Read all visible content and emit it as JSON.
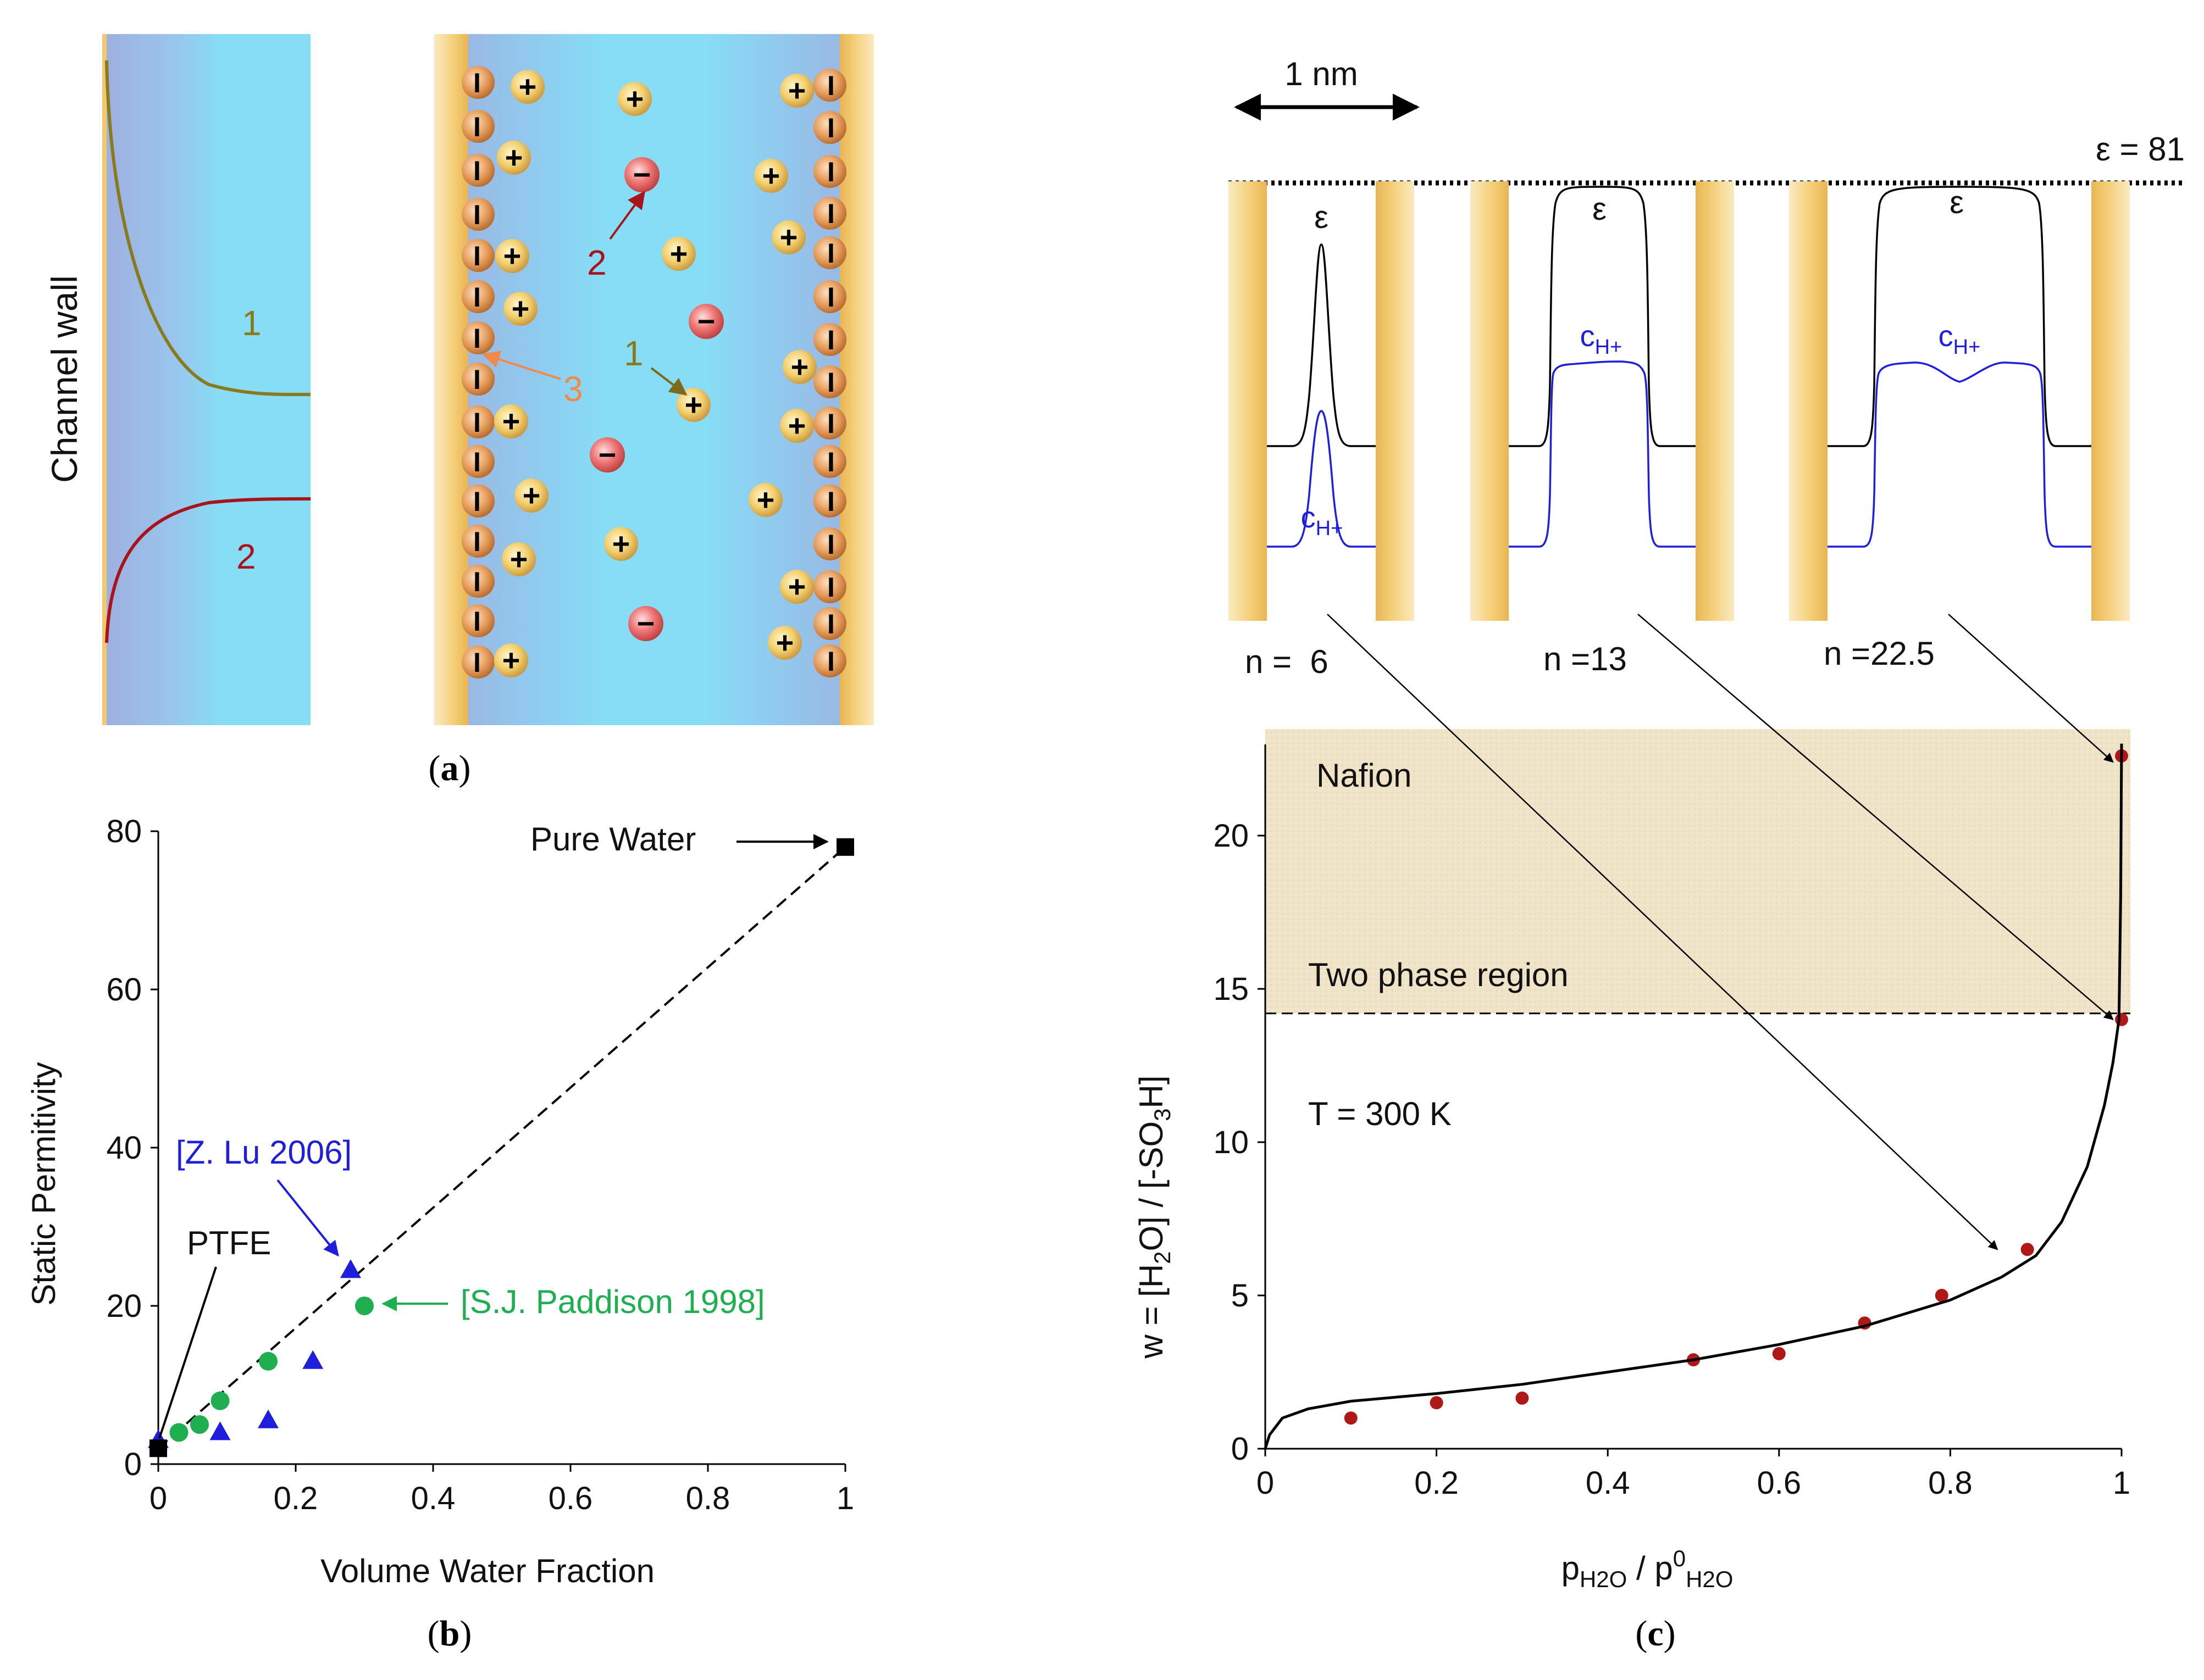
{
  "colors": {
    "water": "#87dcf6",
    "wall_lavender": "#9fb2e0",
    "wall_gold": "#f2c86e",
    "curve1": "#8a7a1e",
    "curve2": "#a8141a",
    "label3": "#f08a4a",
    "blue": "#1e1edc",
    "green": "#1fae50",
    "red_point": "#b01818",
    "nafion_bg": "#efe4cc"
  },
  "panel_a": {
    "caption": "a",
    "channel_wall_label": "Channel wall",
    "left_curve_labels": [
      "1",
      "2"
    ],
    "ion_labels": [
      "1",
      "2",
      "3"
    ],
    "plus_symbol": "+",
    "minus_symbol": "−",
    "fixed_charge_symbol": "I"
  },
  "panel_b": {
    "caption": "b",
    "annotations": {
      "pure_water": "Pure Water",
      "z_lu": "[Z. Lu 2006]",
      "ptfe": "PTFE",
      "paddison": "[S.J. Paddison 1998]"
    }
  },
  "panel_c": {
    "caption": "c",
    "scale_bar_label": "1 nm",
    "epsilon_value_label": "ε = 81",
    "epsilon_symbol": "ε",
    "conc_label_main": "c",
    "conc_label_sub": "H+",
    "pore_labels": [
      "n =  6",
      "n =13",
      "n =22.5"
    ],
    "region_labels": {
      "nafion": "Nafion",
      "two_phase": "Two phase region",
      "temperature": "T = 300 K"
    }
  },
  "chart_data": [
    {
      "id": "b",
      "type": "scatter",
      "title": "",
      "xlabel": "Volume Water Fraction",
      "ylabel": "Static Permitivity",
      "xlim": [
        0,
        1
      ],
      "ylim": [
        0,
        80
      ],
      "xticks": [
        "0",
        "0.2",
        "0.4",
        "0.6",
        "0.8",
        "1"
      ],
      "yticks": [
        "0",
        "20",
        "40",
        "60",
        "80"
      ],
      "series": [
        {
          "name": "[Z. Lu 2006]",
          "marker": "triangle",
          "color": "#1e1edc",
          "points": [
            [
              0,
              3
            ],
            [
              0.09,
              4
            ],
            [
              0.16,
              5.5
            ],
            [
              0.225,
              13
            ],
            [
              0.28,
              24.5
            ]
          ]
        },
        {
          "name": "[S.J. Paddison 1998]",
          "marker": "circle",
          "color": "#1fae50",
          "points": [
            [
              0.03,
              4
            ],
            [
              0.06,
              5
            ],
            [
              0.09,
              8
            ],
            [
              0.16,
              13
            ],
            [
              0.3,
              20
            ]
          ]
        },
        {
          "name": "PTFE / Pure Water",
          "marker": "square",
          "color": "#000000",
          "points": [
            [
              0,
              2
            ],
            [
              1,
              78
            ]
          ]
        }
      ],
      "fit_line": {
        "style": "dashed",
        "points": [
          [
            0,
            2
          ],
          [
            1,
            78
          ]
        ]
      }
    },
    {
      "id": "c",
      "type": "scatter",
      "title": "",
      "xlabel": "pH2O / p0H2O",
      "xlabel_parts": [
        "p",
        "H2O",
        " / p",
        "0",
        "H2O"
      ],
      "ylabel": "w = [H2O] / [-SO3H]",
      "ylabel_parts": [
        "w = [H",
        "2",
        "O] / [-SO",
        "3",
        "H]"
      ],
      "xlim": [
        0,
        1
      ],
      "ylim": [
        0,
        22.5
      ],
      "xticks": [
        "0",
        "0.2",
        "0.4",
        "0.6",
        "0.8",
        "1"
      ],
      "yticks": [
        "0",
        "5",
        "10",
        "15",
        "20"
      ],
      "series": [
        {
          "name": "measured",
          "marker": "circle",
          "color": "#b01818",
          "points": [
            [
              0.1,
              1.0
            ],
            [
              0.2,
              1.5
            ],
            [
              0.3,
              1.65
            ],
            [
              0.5,
              2.9
            ],
            [
              0.6,
              3.1
            ],
            [
              0.7,
              4.1
            ],
            [
              0.79,
              5.0
            ],
            [
              0.89,
              6.5
            ],
            [
              1.0,
              14.0
            ],
            [
              1.0,
              22.6
            ]
          ]
        },
        {
          "name": "model",
          "marker": "line",
          "color": "#000000",
          "points": [
            [
              0,
              0
            ],
            [
              0.005,
              0.45
            ],
            [
              0.02,
              1.0
            ],
            [
              0.05,
              1.3
            ],
            [
              0.1,
              1.55
            ],
            [
              0.2,
              1.8
            ],
            [
              0.3,
              2.1
            ],
            [
              0.4,
              2.5
            ],
            [
              0.5,
              2.9
            ],
            [
              0.6,
              3.4
            ],
            [
              0.7,
              4.0
            ],
            [
              0.8,
              4.85
            ],
            [
              0.86,
              5.6
            ],
            [
              0.9,
              6.3
            ],
            [
              0.93,
              7.4
            ],
            [
              0.96,
              9.2
            ],
            [
              0.98,
              11.2
            ],
            [
              0.99,
              12.6
            ],
            [
              0.997,
              14.0
            ],
            [
              0.999,
              18.0
            ],
            [
              1.0,
              23.0
            ]
          ]
        }
      ],
      "two_phase_boundary_w": 14.2
    }
  ]
}
